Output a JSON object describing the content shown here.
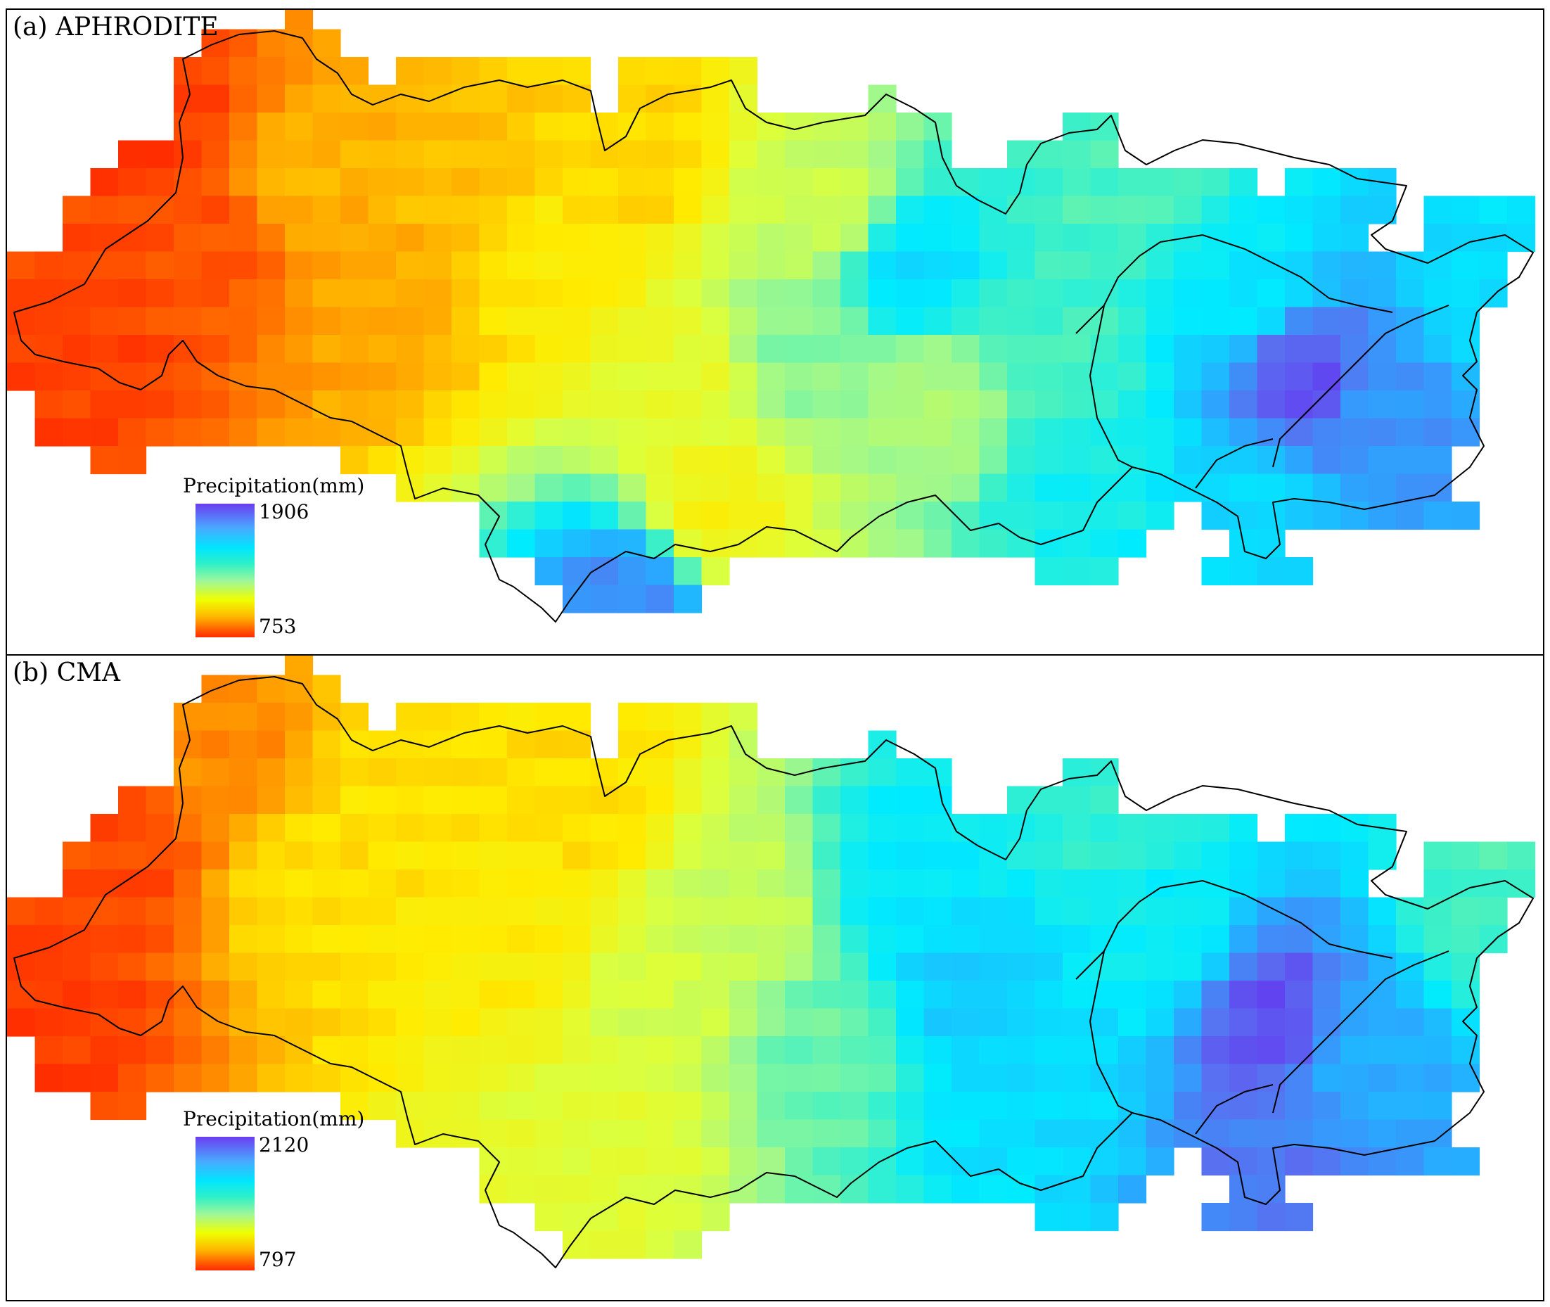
{
  "panels": [
    {
      "title": "(a) APHRODITE",
      "legend": {
        "title": "Precipitation(mm)",
        "max": "1906",
        "min": "753"
      },
      "min_value": 753,
      "max_value": 1906,
      "grid_rows": 22,
      "grid_cols": 56,
      "anchors": [
        {
          "c": 2,
          "r": 12,
          "v": 790
        },
        {
          "c": 5,
          "r": 4,
          "v": 780
        },
        {
          "c": 7,
          "r": 8,
          "v": 820
        },
        {
          "c": 10,
          "r": 6,
          "v": 980
        },
        {
          "c": 13,
          "r": 10,
          "v": 960
        },
        {
          "c": 16,
          "r": 6,
          "v": 1000
        },
        {
          "c": 19,
          "r": 9,
          "v": 1080
        },
        {
          "c": 22,
          "r": 5,
          "v": 1040
        },
        {
          "c": 24,
          "r": 13,
          "v": 1180
        },
        {
          "c": 25,
          "r": 18,
          "v": 1120
        },
        {
          "c": 29,
          "r": 7,
          "v": 1250
        },
        {
          "c": 28,
          "r": 12,
          "v": 1380
        },
        {
          "c": 32,
          "r": 9,
          "v": 1610
        },
        {
          "c": 33,
          "r": 14,
          "v": 1320
        },
        {
          "c": 22,
          "r": 21,
          "v": 1780
        },
        {
          "c": 37,
          "r": 12,
          "v": 1460
        },
        {
          "c": 40,
          "r": 6,
          "v": 1450
        },
        {
          "c": 44,
          "r": 10,
          "v": 1580
        },
        {
          "c": 46,
          "r": 13,
          "v": 1860
        },
        {
          "c": 49,
          "r": 14,
          "v": 1760
        },
        {
          "c": 53,
          "r": 10,
          "v": 1600
        },
        {
          "c": 44,
          "r": 18,
          "v": 1620
        },
        {
          "c": 38,
          "r": 17,
          "v": 1540
        }
      ]
    },
    {
      "title": "(b) CMA",
      "legend": {
        "title": "Precipitation(mm)",
        "max": "2120",
        "min": "797"
      },
      "min_value": 797,
      "max_value": 2120,
      "grid_rows": 22,
      "grid_cols": 56,
      "anchors": [
        {
          "c": 1,
          "r": 12,
          "v": 830
        },
        {
          "c": 4,
          "r": 7,
          "v": 860
        },
        {
          "c": 7,
          "r": 4,
          "v": 980
        },
        {
          "c": 10,
          "r": 8,
          "v": 1150
        },
        {
          "c": 14,
          "r": 5,
          "v": 1150
        },
        {
          "c": 18,
          "r": 10,
          "v": 1180
        },
        {
          "c": 20,
          "r": 5,
          "v": 1140
        },
        {
          "c": 23,
          "r": 12,
          "v": 1350
        },
        {
          "c": 21,
          "r": 17,
          "v": 1300
        },
        {
          "c": 26,
          "r": 9,
          "v": 1380
        },
        {
          "c": 29,
          "r": 14,
          "v": 1560
        },
        {
          "c": 32,
          "r": 8,
          "v": 1750
        },
        {
          "c": 34,
          "r": 12,
          "v": 1820
        },
        {
          "c": 36,
          "r": 16,
          "v": 1780
        },
        {
          "c": 39,
          "r": 5,
          "v": 1640
        },
        {
          "c": 41,
          "r": 10,
          "v": 1720
        },
        {
          "c": 45,
          "r": 13,
          "v": 2080
        },
        {
          "c": 48,
          "r": 14,
          "v": 1900
        },
        {
          "c": 53,
          "r": 9,
          "v": 1600
        },
        {
          "c": 45,
          "r": 19,
          "v": 2000
        }
      ]
    }
  ]
}
